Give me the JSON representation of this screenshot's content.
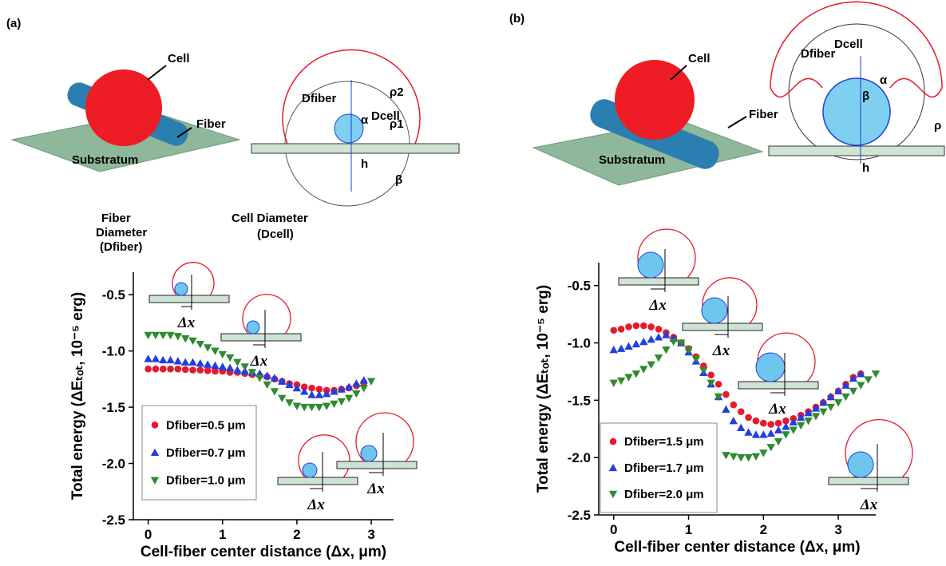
{
  "chart_data": [
    {
      "type": "scatter",
      "x_label": "Cell-fiber center distance (Δx, μm)",
      "y_label": "Total energy (ΔEₜₒₜ, 10⁻⁵ erg)",
      "xlim": [
        -0.2,
        3.3
      ],
      "xticks": [
        0,
        1,
        2,
        3
      ],
      "ylim": [
        -2.5,
        -0.3
      ],
      "yticks": [
        -2.5,
        {
          "value": -2,
          "label": "-2.0"
        },
        -1.5,
        {
          "value": -1,
          "label": "-1.0"
        },
        -0.5
      ],
      "legend": "lower-left",
      "series": [
        {
          "name": "Dfiber=0.5 μm",
          "color": "#e8192c",
          "marker": "circle",
          "x": [
            0,
            0.1,
            0.2,
            0.3,
            0.4,
            0.5,
            0.6,
            0.7,
            0.8,
            0.9,
            1,
            1.1,
            1.2,
            1.3,
            1.4,
            1.5,
            1.6,
            1.7,
            1.8,
            1.9,
            2,
            2.1,
            2.2,
            2.3,
            2.4,
            2.5,
            2.6,
            2.7,
            2.8,
            2.9
          ],
          "values": [
            -1.16,
            -1.16,
            -1.16,
            -1.16,
            -1.16,
            -1.165,
            -1.17,
            -1.17,
            -1.175,
            -1.18,
            -1.18,
            -1.19,
            -1.19,
            -1.2,
            -1.21,
            -1.22,
            -1.23,
            -1.25,
            -1.27,
            -1.29,
            -1.3,
            -1.32,
            -1.33,
            -1.34,
            -1.35,
            -1.35,
            -1.34,
            -1.33,
            -1.31,
            -1.28
          ]
        },
        {
          "name": "Dfiber=0.7 μm",
          "color": "#1f3fe0",
          "marker": "triangle-up",
          "x": [
            0,
            0.1,
            0.2,
            0.3,
            0.4,
            0.5,
            0.6,
            0.7,
            0.8,
            0.9,
            1,
            1.1,
            1.2,
            1.3,
            1.4,
            1.5,
            1.6,
            1.7,
            1.8,
            1.9,
            2,
            2.1,
            2.2,
            2.3,
            2.4,
            2.5,
            2.6,
            2.7,
            2.8,
            2.9
          ],
          "values": [
            -1.07,
            -1.07,
            -1.08,
            -1.08,
            -1.09,
            -1.1,
            -1.1,
            -1.11,
            -1.12,
            -1.13,
            -1.14,
            -1.15,
            -1.17,
            -1.18,
            -1.19,
            -1.2,
            -1.22,
            -1.24,
            -1.27,
            -1.3,
            -1.33,
            -1.36,
            -1.39,
            -1.39,
            -1.38,
            -1.36,
            -1.34,
            -1.32,
            -1.29,
            -1.26
          ]
        },
        {
          "name": "Dfiber=1.0 μm",
          "color": "#2e8b2e",
          "marker": "triangle-down",
          "x": [
            0,
            0.1,
            0.2,
            0.3,
            0.4,
            0.5,
            0.6,
            0.7,
            0.8,
            0.9,
            1,
            1.1,
            1.2,
            1.3,
            1.4,
            1.5,
            1.6,
            1.7,
            1.8,
            1.9,
            2,
            2.1,
            2.2,
            2.3,
            2.4,
            2.5,
            2.6,
            2.7,
            2.8,
            2.9,
            3
          ],
          "values": [
            -0.86,
            -0.86,
            -0.86,
            -0.86,
            -0.87,
            -0.89,
            -0.91,
            -0.94,
            -0.97,
            -1,
            -1.03,
            -1.06,
            -1.1,
            -1.14,
            -1.19,
            -1.24,
            -1.3,
            -1.36,
            -1.42,
            -1.46,
            -1.49,
            -1.5,
            -1.5,
            -1.5,
            -1.49,
            -1.47,
            -1.45,
            -1.42,
            -1.38,
            -1.33,
            -1.27
          ]
        }
      ]
    },
    {
      "type": "scatter",
      "x_label": "Cell-fiber center distance (Δx, μm)",
      "y_label": "Total energy (ΔEₜₒₜ, 10⁻⁵ erg)",
      "xlim": [
        -0.2,
        3.5
      ],
      "xticks": [
        0,
        1,
        2,
        3
      ],
      "ylim": [
        -2.5,
        -0.3
      ],
      "yticks": [
        -2.5,
        {
          "value": -2,
          "label": "-2.0"
        },
        -1.5,
        {
          "value": -1,
          "label": "-1.0"
        },
        -0.5
      ],
      "legend": "lower-left",
      "series": [
        {
          "name": "Dfiber=1.5 μm",
          "color": "#e8192c",
          "marker": "circle",
          "x": [
            0,
            0.1,
            0.2,
            0.3,
            0.4,
            0.5,
            0.6,
            0.7,
            0.8,
            0.9,
            1,
            1.1,
            1.2,
            1.3,
            1.4,
            1.5,
            1.6,
            1.7,
            1.8,
            1.9,
            2,
            2.1,
            2.2,
            2.3,
            2.4,
            2.5,
            2.6,
            2.7,
            2.8,
            2.9,
            3,
            3.1,
            3.2,
            3.3
          ],
          "values": [
            -0.89,
            -0.88,
            -0.86,
            -0.85,
            -0.85,
            -0.86,
            -0.88,
            -0.91,
            -0.95,
            -1,
            -1.05,
            -1.12,
            -1.2,
            -1.28,
            -1.36,
            -1.45,
            -1.54,
            -1.6,
            -1.65,
            -1.68,
            -1.7,
            -1.71,
            -1.7,
            -1.68,
            -1.66,
            -1.63,
            -1.6,
            -1.56,
            -1.52,
            -1.47,
            -1.42,
            -1.36,
            -1.3,
            -1.27
          ]
        },
        {
          "name": "Dfiber=1.7 μm",
          "color": "#1f3fe0",
          "marker": "triangle-up",
          "x": [
            0,
            0.1,
            0.2,
            0.3,
            0.4,
            0.5,
            0.6,
            0.7,
            0.8,
            0.9,
            1,
            1.1,
            1.2,
            1.3,
            1.4,
            1.5,
            1.6,
            1.7,
            1.8,
            1.9,
            2,
            2.1,
            2.2,
            2.3,
            2.4,
            2.5,
            2.6,
            2.7,
            2.8,
            2.9,
            3,
            3.1,
            3.2,
            3.3
          ],
          "values": [
            -1.06,
            -1.05,
            -1.03,
            -1.01,
            -0.99,
            -0.97,
            -0.95,
            -0.93,
            -0.96,
            -1,
            -1.08,
            -1.16,
            -1.26,
            -1.36,
            -1.47,
            -1.58,
            -1.68,
            -1.74,
            -1.78,
            -1.8,
            -1.8,
            -1.79,
            -1.76,
            -1.73,
            -1.69,
            -1.65,
            -1.61,
            -1.57,
            -1.52,
            -1.47,
            -1.42,
            -1.37,
            -1.31,
            -1.27
          ]
        },
        {
          "name": "Dfiber=2.0 μm",
          "color": "#2e8b2e",
          "marker": "triangle-down",
          "x": [
            0,
            0.1,
            0.2,
            0.3,
            0.4,
            0.5,
            0.6,
            0.7,
            0.8,
            0.9,
            1,
            1.1,
            1.2,
            1.3,
            1.4,
            1.5,
            1.6,
            1.7,
            1.8,
            1.9,
            2,
            2.1,
            2.2,
            2.3,
            2.4,
            2.5,
            2.6,
            2.7,
            2.8,
            2.9,
            3,
            3.1,
            3.2,
            3.3,
            3.4,
            3.5
          ],
          "values": [
            -1.35,
            -1.33,
            -1.3,
            -1.27,
            -1.23,
            -1.19,
            -1.13,
            -1.06,
            -0.99,
            -1,
            -1.06,
            -1.14,
            -1.24,
            -1.35,
            -1.47,
            -1.98,
            -1.99,
            -2,
            -2,
            -1.99,
            -1.96,
            -1.91,
            -1.86,
            -1.8,
            -1.76,
            -1.72,
            -1.68,
            -1.64,
            -1.6,
            -1.56,
            -1.52,
            -1.47,
            -1.42,
            -1.37,
            -1.32,
            -1.27
          ]
        }
      ]
    }
  ],
  "panels": [
    {
      "label": "(a)",
      "cell": "Cell",
      "fiber": "Fiber",
      "substratum": "Substratum",
      "d_cell": "Dcell",
      "d_fiber": "Dfiber",
      "rho2": "ρ2",
      "rho1": "ρ1",
      "alpha": "α",
      "h": "h",
      "beta": "β",
      "fiber_diameter": [
        "Fiber",
        "Diameter",
        "(Dfiber)"
      ],
      "cell_diameter": [
        "Cell Diameter",
        "(Dcell)"
      ],
      "insets": [
        "Δx",
        "Δx",
        "Δx",
        "Δx"
      ]
    },
    {
      "label": "(b)",
      "cell": "Cell",
      "fiber": "Fiber",
      "substratum": "Substratum",
      "d_fiber": "Dfiber",
      "d_cell": "Dcell",
      "alpha": "α",
      "beta": "β",
      "rho": "ρ",
      "h": "h",
      "insets": [
        "Δx",
        "Δx",
        "Δx",
        "Δx"
      ]
    }
  ]
}
